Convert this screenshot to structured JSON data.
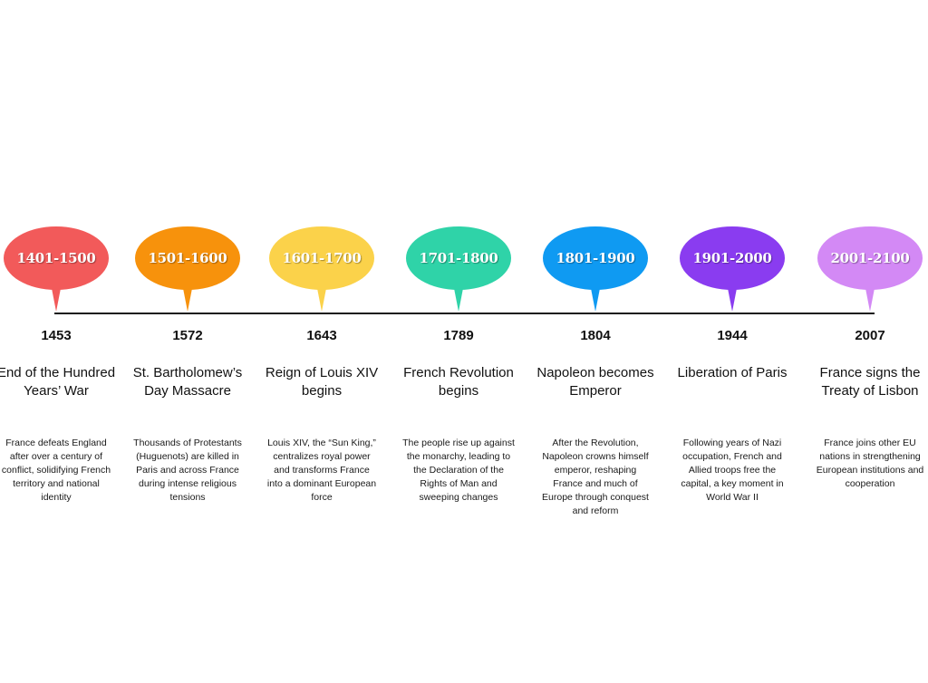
{
  "timeline": {
    "items": [
      {
        "period": "1401-1500",
        "color": "#f25a5a",
        "year": "1453",
        "title": "End of the Hundred Years’ War",
        "description": "France defeats England after over a century of conflict, solidifying French territory and national identity"
      },
      {
        "period": "1501-1600",
        "color": "#f7920c",
        "year": "1572",
        "title": "St. Bartholomew’s Day Massacre",
        "description": "Thousands of Protestants (Huguenots) are killed in Paris and across France during intense religious tensions"
      },
      {
        "period": "1601-1700",
        "color": "#fbd24a",
        "year": "1643",
        "title": "Reign of Louis XIV begins",
        "description": "Louis XIV, the “Sun King,” centralizes royal power and transforms France into a dominant European force"
      },
      {
        "period": "1701-1800",
        "color": "#2fd3a8",
        "year": "1789",
        "title": "French Revolution begins",
        "description": "The people rise up against the monarchy, leading to the Declaration of the Rights of Man and sweeping changes"
      },
      {
        "period": "1801-1900",
        "color": "#0f9af2",
        "year": "1804",
        "title": "Napoleon becomes Emperor",
        "description": "After the Revolution, Napoleon crowns himself emperor, reshaping France and much of Europe through conquest and reform"
      },
      {
        "period": "1901-2000",
        "color": "#8a3cf0",
        "year": "1944",
        "title": "Liberation of Paris",
        "description": "Following years of Nazi occupation, French and Allied troops free the capital, a key moment in World War II"
      },
      {
        "period": "2001-2100",
        "color": "#d389f5",
        "year": "2007",
        "title": "France signs the Treaty of Lisbon",
        "description": "France joins other EU nations in strengthening European institutions and cooperation"
      }
    ]
  }
}
